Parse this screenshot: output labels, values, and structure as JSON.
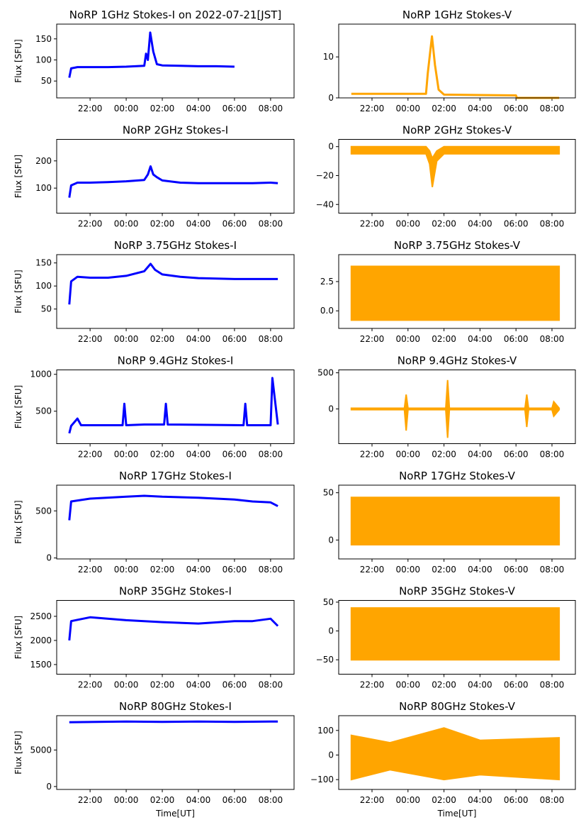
{
  "chart_data": [
    {
      "type": "line",
      "title": "NoRP 1GHz Stokes-I on 2022-07-21[JST]",
      "ylabel": "Flux [SFU]",
      "color": "#0000ff",
      "x": [
        20.85,
        20.95,
        21.3,
        22,
        23,
        24,
        25,
        25.1,
        25.2,
        25.33,
        25.5,
        25.7,
        26,
        27,
        28,
        29,
        30
      ],
      "values": [
        58,
        80,
        83,
        83,
        83,
        84,
        86,
        115,
        100,
        165,
        120,
        90,
        87,
        86,
        85,
        85,
        84
      ],
      "xlim": [
        20.15,
        33.3
      ],
      "ylim": [
        10,
        185
      ],
      "xticks": [
        {
          "value": 22,
          "label": "22:00"
        },
        {
          "value": 24,
          "label": "00:00"
        },
        {
          "value": 26,
          "label": "02:00"
        },
        {
          "value": 28,
          "label": "04:00"
        },
        {
          "value": 30,
          "label": "06:00"
        },
        {
          "value": 32,
          "label": "08:00"
        }
      ],
      "yticks": [
        50,
        100,
        150
      ]
    },
    {
      "type": "line",
      "title": "NoRP 1GHz Stokes-V",
      "color": "#ffa500",
      "x": [
        20.85,
        22,
        24,
        25,
        25.1,
        25.33,
        25.5,
        25.7,
        26,
        28,
        30,
        30.05,
        32.4
      ],
      "values": [
        1,
        1,
        1,
        1,
        6,
        15,
        8,
        2,
        0.8,
        0.7,
        0.6,
        0,
        0
      ],
      "xlim": [
        20.15,
        33.3
      ],
      "ylim": [
        0,
        18
      ],
      "xticks": [
        {
          "value": 22,
          "label": "22:00"
        },
        {
          "value": 24,
          "label": "00:00"
        },
        {
          "value": 26,
          "label": "02:00"
        },
        {
          "value": 28,
          "label": "04:00"
        },
        {
          "value": 30,
          "label": "06:00"
        },
        {
          "value": 32,
          "label": "08:00"
        }
      ],
      "yticks": [
        0,
        10
      ]
    },
    {
      "type": "line",
      "title": "NoRP 2GHz Stokes-I",
      "ylabel": "Flux [SFU]",
      "color": "#0000ff",
      "x": [
        20.85,
        20.95,
        21.3,
        22,
        23,
        24,
        25,
        25.2,
        25.35,
        25.5,
        25.7,
        26,
        27,
        28,
        29,
        30,
        31,
        32,
        32.4
      ],
      "values": [
        65,
        110,
        120,
        120,
        122,
        125,
        130,
        150,
        180,
        150,
        140,
        128,
        120,
        118,
        118,
        118,
        118,
        120,
        118
      ],
      "xlim": [
        20.15,
        33.3
      ],
      "ylim": [
        8,
        279
      ],
      "xticks": [
        {
          "value": 22,
          "label": "22:00"
        },
        {
          "value": 24,
          "label": "00:00"
        },
        {
          "value": 26,
          "label": "02:00"
        },
        {
          "value": 28,
          "label": "04:00"
        },
        {
          "value": 30,
          "label": "06:00"
        },
        {
          "value": 32,
          "label": "08:00"
        }
      ],
      "yticks": [
        100,
        200
      ]
    },
    {
      "type": "band",
      "title": "NoRP 2GHz Stokes-V",
      "color": "#ffa500",
      "x": [
        20.85,
        22,
        24,
        25,
        25.2,
        25.35,
        25.6,
        26,
        28,
        30,
        32.4
      ],
      "high": [
        0,
        0,
        0,
        0,
        -3,
        -8,
        -3,
        0,
        0,
        0,
        0
      ],
      "low": [
        -5,
        -5,
        -5,
        -5,
        -12,
        -28,
        -10,
        -5,
        -5,
        -5,
        -5
      ],
      "xlim": [
        20.15,
        33.3
      ],
      "ylim": [
        -46,
        5
      ],
      "xticks": [
        {
          "value": 22,
          "label": "22:00"
        },
        {
          "value": 24,
          "label": "00:00"
        },
        {
          "value": 26,
          "label": "02:00"
        },
        {
          "value": 28,
          "label": "04:00"
        },
        {
          "value": 30,
          "label": "06:00"
        },
        {
          "value": 32,
          "label": "08:00"
        }
      ],
      "yticks": [
        0,
        {
          "value": -20,
          "label": "−20"
        },
        {
          "value": -40,
          "label": "−40"
        }
      ]
    },
    {
      "type": "line",
      "title": "NoRP 3.75GHz Stokes-I",
      "ylabel": "Flux [SFU]",
      "color": "#0000ff",
      "x": [
        20.85,
        20.95,
        21.3,
        22,
        23,
        24,
        25,
        25.35,
        25.6,
        26,
        27,
        28,
        29,
        30,
        31,
        32,
        32.4
      ],
      "values": [
        60,
        110,
        120,
        118,
        118,
        122,
        132,
        148,
        135,
        125,
        120,
        117,
        116,
        115,
        115,
        115,
        115
      ],
      "xlim": [
        20.15,
        33.3
      ],
      "ylim": [
        8,
        168
      ],
      "xticks": [
        {
          "value": 22,
          "label": "22:00"
        },
        {
          "value": 24,
          "label": "00:00"
        },
        {
          "value": 26,
          "label": "02:00"
        },
        {
          "value": 28,
          "label": "04:00"
        },
        {
          "value": 30,
          "label": "06:00"
        },
        {
          "value": 32,
          "label": "08:00"
        }
      ],
      "yticks": [
        50,
        100,
        150
      ]
    },
    {
      "type": "band",
      "title": "NoRP 3.75GHz Stokes-V",
      "color": "#ffa500",
      "x": [
        20.85,
        24,
        28,
        32.4
      ],
      "high": [
        3.8,
        3.8,
        3.8,
        3.8
      ],
      "low": [
        -0.8,
        -0.8,
        -0.8,
        -0.8
      ],
      "xlim": [
        20.15,
        33.3
      ],
      "ylim": [
        -1.5,
        4.8
      ],
      "xticks": [
        {
          "value": 22,
          "label": "22:00"
        },
        {
          "value": 24,
          "label": "00:00"
        },
        {
          "value": 26,
          "label": "02:00"
        },
        {
          "value": 28,
          "label": "04:00"
        },
        {
          "value": 30,
          "label": "06:00"
        },
        {
          "value": 32,
          "label": "08:00"
        }
      ],
      "yticks": [
        {
          "value": 0,
          "label": "0.0"
        },
        2.5
      ]
    },
    {
      "type": "line",
      "title": "NoRP 9.4GHz Stokes-I",
      "ylabel": "Flux [SFU]",
      "color": "#0000ff",
      "x": [
        20.85,
        20.95,
        21.3,
        21.5,
        23.8,
        23.9,
        24,
        25,
        26.1,
        26.2,
        26.3,
        30.5,
        30.6,
        30.7,
        32,
        32.1,
        32.4
      ],
      "values": [
        200,
        300,
        400,
        310,
        310,
        600,
        310,
        320,
        320,
        600,
        320,
        310,
        600,
        310,
        310,
        950,
        320
      ],
      "xlim": [
        20.15,
        33.3
      ],
      "ylim": [
        60,
        1060
      ],
      "xticks": [
        {
          "value": 22,
          "label": "22:00"
        },
        {
          "value": 24,
          "label": "00:00"
        },
        {
          "value": 26,
          "label": "02:00"
        },
        {
          "value": 28,
          "label": "04:00"
        },
        {
          "value": 30,
          "label": "06:00"
        },
        {
          "value": 32,
          "label": "08:00"
        }
      ],
      "yticks": [
        500,
        1000
      ]
    },
    {
      "type": "band",
      "title": "NoRP 9.4GHz Stokes-V",
      "color": "#ffa500",
      "x": [
        20.85,
        23.8,
        23.9,
        24,
        26.1,
        26.2,
        26.3,
        30.5,
        30.6,
        30.7,
        32,
        32.1,
        32.4
      ],
      "high": [
        10,
        10,
        200,
        10,
        10,
        400,
        10,
        10,
        200,
        10,
        10,
        100,
        10
      ],
      "low": [
        -10,
        -10,
        -300,
        -10,
        -10,
        -400,
        -10,
        -10,
        -250,
        -10,
        -10,
        -100,
        -10
      ],
      "xlim": [
        20.15,
        33.3
      ],
      "ylim": [
        -480,
        540
      ],
      "xticks": [
        {
          "value": 22,
          "label": "22:00"
        },
        {
          "value": 24,
          "label": "00:00"
        },
        {
          "value": 26,
          "label": "02:00"
        },
        {
          "value": 28,
          "label": "04:00"
        },
        {
          "value": 30,
          "label": "06:00"
        },
        {
          "value": 32,
          "label": "08:00"
        }
      ],
      "yticks": [
        0,
        500
      ]
    },
    {
      "type": "line",
      "title": "NoRP 17GHz Stokes-I",
      "ylabel": "Flux [SFU]",
      "color": "#0000ff",
      "x": [
        20.85,
        20.95,
        22,
        24,
        25,
        26,
        28,
        30,
        31,
        32,
        32.4
      ],
      "values": [
        400,
        600,
        630,
        650,
        660,
        650,
        640,
        620,
        600,
        590,
        550
      ],
      "xlim": [
        20.15,
        33.3
      ],
      "ylim": [
        -10,
        773
      ],
      "xticks": [
        {
          "value": 22,
          "label": "22:00"
        },
        {
          "value": 24,
          "label": "00:00"
        },
        {
          "value": 26,
          "label": "02:00"
        },
        {
          "value": 28,
          "label": "04:00"
        },
        {
          "value": 30,
          "label": "06:00"
        },
        {
          "value": 32,
          "label": "08:00"
        }
      ],
      "yticks": [
        0,
        500
      ]
    },
    {
      "type": "band",
      "title": "NoRP 17GHz Stokes-V",
      "color": "#ffa500",
      "x": [
        20.85,
        24,
        28,
        32.4
      ],
      "high": [
        45,
        45,
        45,
        45
      ],
      "low": [
        -5,
        -5,
        -5,
        -5
      ],
      "xlim": [
        20.15,
        33.3
      ],
      "ylim": [
        -20,
        58
      ],
      "xticks": [
        {
          "value": 22,
          "label": "22:00"
        },
        {
          "value": 24,
          "label": "00:00"
        },
        {
          "value": 26,
          "label": "02:00"
        },
        {
          "value": 28,
          "label": "04:00"
        },
        {
          "value": 30,
          "label": "06:00"
        },
        {
          "value": 32,
          "label": "08:00"
        }
      ],
      "yticks": [
        0,
        50
      ]
    },
    {
      "type": "line",
      "title": "NoRP 35GHz Stokes-I",
      "ylabel": "Flux [SFU]",
      "color": "#0000ff",
      "x": [
        20.85,
        20.95,
        22,
        24,
        26,
        28,
        30,
        31,
        32,
        32.4
      ],
      "values": [
        2000,
        2400,
        2480,
        2420,
        2380,
        2350,
        2400,
        2400,
        2450,
        2300
      ],
      "xlim": [
        20.15,
        33.3
      ],
      "ylim": [
        1300,
        2830
      ],
      "xticks": [
        {
          "value": 22,
          "label": "22:00"
        },
        {
          "value": 24,
          "label": "00:00"
        },
        {
          "value": 26,
          "label": "02:00"
        },
        {
          "value": 28,
          "label": "04:00"
        },
        {
          "value": 30,
          "label": "06:00"
        },
        {
          "value": 32,
          "label": "08:00"
        }
      ],
      "yticks": [
        1500,
        2000,
        2500
      ]
    },
    {
      "type": "band",
      "title": "NoRP 35GHz Stokes-V",
      "color": "#ffa500",
      "x": [
        20.85,
        24,
        28,
        32.4
      ],
      "high": [
        40,
        40,
        40,
        40
      ],
      "low": [
        -50,
        -50,
        -50,
        -50
      ],
      "xlim": [
        20.15,
        33.3
      ],
      "ylim": [
        -75,
        53
      ],
      "xticks": [
        {
          "value": 22,
          "label": "22:00"
        },
        {
          "value": 24,
          "label": "00:00"
        },
        {
          "value": 26,
          "label": "02:00"
        },
        {
          "value": 28,
          "label": "04:00"
        },
        {
          "value": 30,
          "label": "06:00"
        },
        {
          "value": 32,
          "label": "08:00"
        }
      ],
      "yticks": [
        {
          "value": -50,
          "label": "−50"
        },
        0,
        50
      ]
    },
    {
      "type": "line",
      "title": "NoRP 80GHz Stokes-I",
      "ylabel": "Flux [SFU]",
      "xlabel": "Time[UT]",
      "color": "#0000ff",
      "x": [
        20.85,
        24,
        26,
        28,
        30,
        32.4
      ],
      "values": [
        8800,
        8900,
        8850,
        8900,
        8850,
        8900
      ],
      "xlim": [
        20.15,
        33.3
      ],
      "ylim": [
        -400,
        9700
      ],
      "xticks": [
        {
          "value": 22,
          "label": "22:00"
        },
        {
          "value": 24,
          "label": "00:00"
        },
        {
          "value": 26,
          "label": "02:00"
        },
        {
          "value": 28,
          "label": "04:00"
        },
        {
          "value": 30,
          "label": "06:00"
        },
        {
          "value": 32,
          "label": "08:00"
        }
      ],
      "yticks": [
        0,
        5000
      ]
    },
    {
      "type": "band",
      "title": "NoRP 80GHz Stokes-V",
      "xlabel": "Time[UT]",
      "color": "#ffa500",
      "x": [
        20.85,
        23,
        26,
        28,
        32.4
      ],
      "high": [
        80,
        50,
        110,
        60,
        70
      ],
      "low": [
        -100,
        -60,
        -100,
        -80,
        -100
      ],
      "xlim": [
        20.15,
        33.3
      ],
      "ylim": [
        -140,
        160
      ],
      "xticks": [
        {
          "value": 22,
          "label": "22:00"
        },
        {
          "value": 24,
          "label": "00:00"
        },
        {
          "value": 26,
          "label": "02:00"
        },
        {
          "value": 28,
          "label": "04:00"
        },
        {
          "value": 30,
          "label": "06:00"
        },
        {
          "value": 32,
          "label": "08:00"
        }
      ],
      "yticks": [
        {
          "value": -100,
          "label": "−100"
        },
        0,
        100
      ]
    }
  ]
}
